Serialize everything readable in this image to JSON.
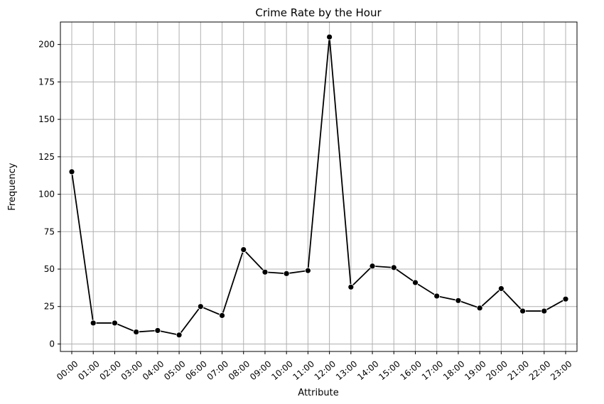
{
  "chart_data": {
    "type": "line",
    "title": "Crime Rate by the Hour",
    "xlabel": "Attribute",
    "ylabel": "Frequency",
    "categories": [
      "00:00",
      "01:00",
      "02:00",
      "03:00",
      "04:00",
      "05:00",
      "06:00",
      "07:00",
      "08:00",
      "09:00",
      "10:00",
      "11:00",
      "12:00",
      "13:00",
      "14:00",
      "15:00",
      "16:00",
      "17:00",
      "18:00",
      "19:00",
      "20:00",
      "21:00",
      "22:00",
      "23:00"
    ],
    "series": [
      {
        "values": [
          115,
          14,
          14,
          8,
          9,
          6,
          25,
          19,
          63,
          48,
          47,
          49,
          205,
          38,
          52,
          51,
          41,
          32,
          29,
          24,
          37,
          22,
          22,
          30
        ]
      }
    ],
    "ylim": [
      -5,
      215
    ],
    "yticks": [
      0,
      25,
      50,
      75,
      100,
      125,
      150,
      175,
      200
    ],
    "grid": true,
    "line_color": "#000000",
    "marker": "circle"
  }
}
